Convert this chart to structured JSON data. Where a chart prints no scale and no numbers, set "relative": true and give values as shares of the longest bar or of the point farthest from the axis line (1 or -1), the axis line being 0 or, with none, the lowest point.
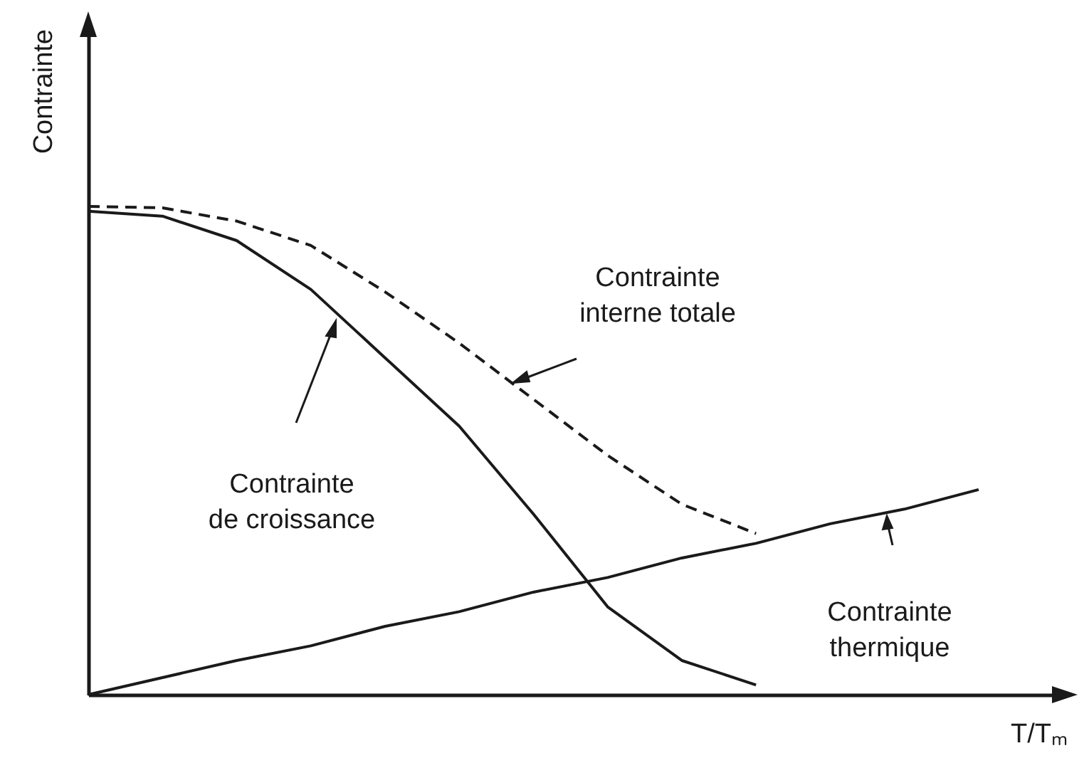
{
  "chart_data": {
    "type": "line",
    "relative": true,
    "xlabel": "T/Tₘ",
    "ylabel": "Contrainte",
    "categories": [
      null,
      null,
      null,
      null,
      null,
      null,
      null,
      null,
      null,
      null,
      null,
      null,
      null
    ],
    "series": [
      {
        "color": "#1a1a1a",
        "line_style": "dashed",
        "values": [
          1.0,
          0.997,
          0.97,
          0.92,
          0.825,
          0.72,
          0.605,
          0.49,
          0.39,
          0.33,
          null,
          null,
          null
        ]
      },
      {
        "color": "#1a1a1a",
        "line_style": "solid",
        "values": [
          0.99,
          0.98,
          0.93,
          0.83,
          0.69,
          0.55,
          0.37,
          0.18,
          0.07,
          0.02,
          null,
          null,
          null
        ]
      },
      {
        "color": "#1a1a1a",
        "line_style": "solid",
        "values": [
          0,
          0.035,
          0.07,
          0.1,
          0.14,
          0.17,
          0.21,
          0.24,
          0.28,
          0.31,
          0.35,
          0.38,
          0.42
        ]
      }
    ],
    "annotations": [
      "Contrainte\ninterne totale",
      "Contrainte\nde croissance",
      "Contrainte\nthermique"
    ],
    "marker": "none"
  }
}
